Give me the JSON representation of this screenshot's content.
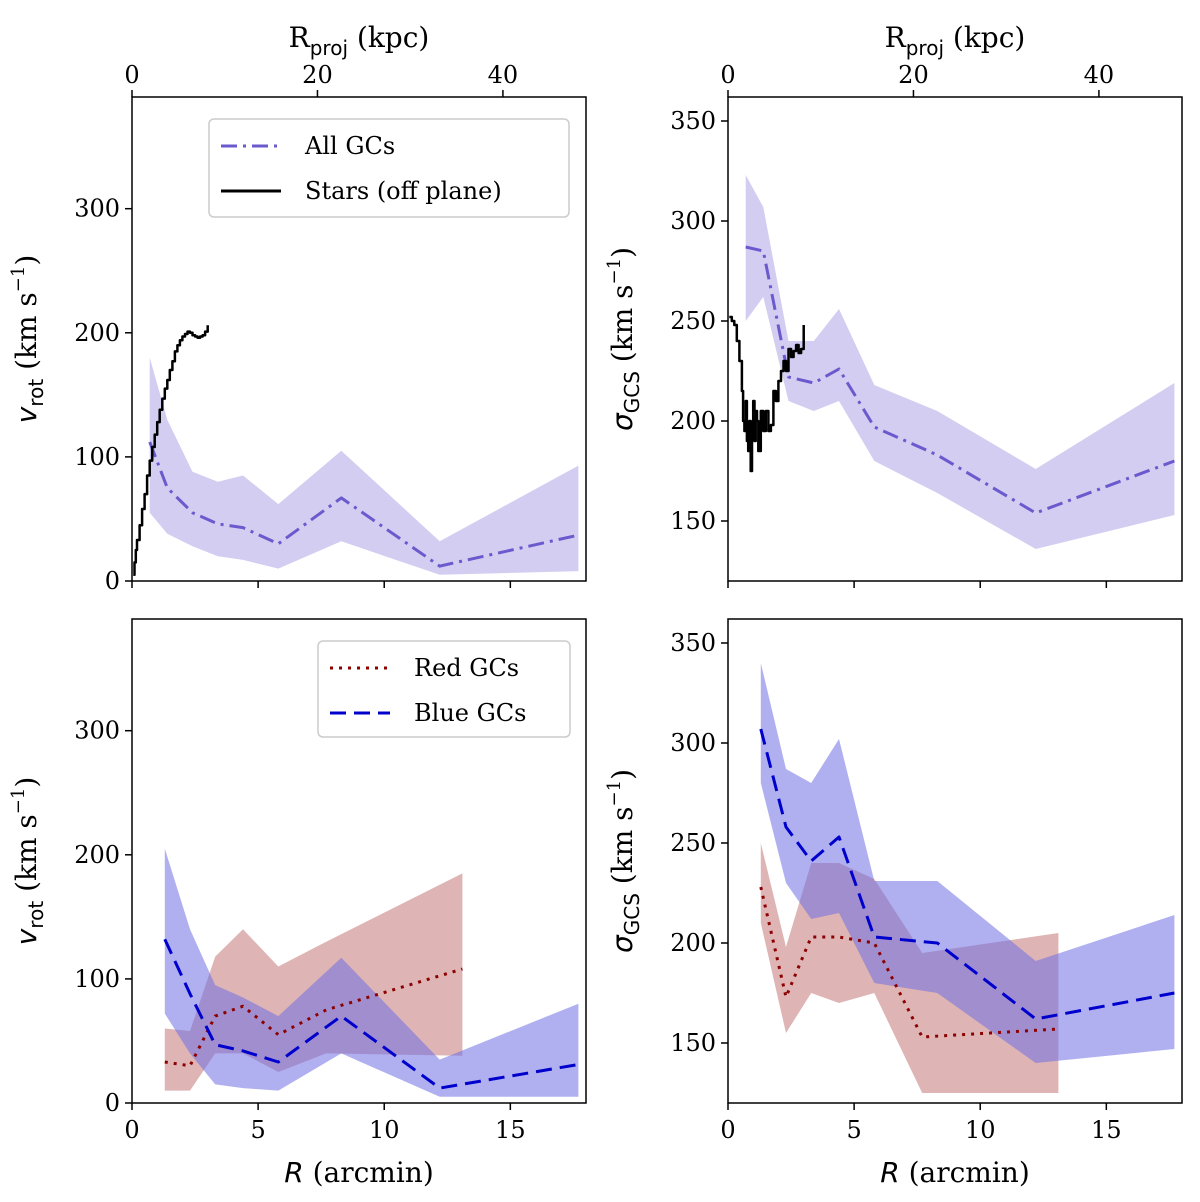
{
  "colors": {
    "all_gcs": "#6a5acd",
    "all_gcs_band": "#d3cdf1",
    "stars": "#000000",
    "red_gcs": "#8b0000",
    "red_gcs_band": "#cd8c8c",
    "blue_gcs": "#0000cd",
    "blue_gcs_band": "#6f6fe6"
  },
  "chart_data": [
    {
      "id": "top-left",
      "type": "line",
      "ylabel_symbol": "v",
      "ylabel_sub": "rot",
      "ylabel_units": "(km s",
      "ylabel_exp": "−1",
      "ylabel_close": ")",
      "top_axis": {
        "label_main": "R",
        "label_sub": "proj",
        "label_units": "(kpc)",
        "ticks": [
          0,
          20,
          40
        ],
        "kpc_per_arcmin": 2.72
      },
      "xlim": [
        0,
        18
      ],
      "ylim": [
        0,
        390
      ],
      "yticks": [
        0,
        100,
        200,
        300
      ],
      "xticks": [
        0,
        5,
        10,
        15
      ],
      "show_xticklabels": false,
      "legend": {
        "position": "upper-center",
        "entries": [
          {
            "label": "All GCs",
            "style": "dashdot",
            "color_key": "all_gcs"
          },
          {
            "label": "Stars (off plane)",
            "style": "solid",
            "color_key": "stars"
          }
        ]
      },
      "series": [
        {
          "name": "All GCs",
          "style": "dashdot",
          "color_key": "all_gcs",
          "band_color_key": "all_gcs_band",
          "band_opacity": 1,
          "x": [
            0.7,
            1.4,
            2.4,
            3.4,
            4.4,
            5.8,
            8.3,
            12.2,
            17.7
          ],
          "y": [
            112,
            75,
            55,
            46,
            43,
            30,
            67,
            12,
            37
          ],
          "lower": [
            55,
            38,
            28,
            20,
            17,
            10,
            32,
            5,
            8
          ],
          "upper": [
            180,
            130,
            88,
            80,
            85,
            62,
            105,
            32,
            93
          ]
        },
        {
          "name": "Stars (off plane)",
          "style": "solid",
          "color_key": "stars",
          "step": true,
          "x": [
            0.05,
            0.1,
            0.15,
            0.2,
            0.3,
            0.4,
            0.5,
            0.6,
            0.7,
            0.8,
            0.9,
            1.0,
            1.1,
            1.2,
            1.3,
            1.4,
            1.5,
            1.6,
            1.7,
            1.8,
            1.9,
            2.0,
            2.1,
            2.2,
            2.3,
            2.4,
            2.5,
            2.6,
            2.7,
            2.8,
            2.9,
            3.0
          ],
          "y": [
            5,
            15,
            25,
            33,
            45,
            58,
            70,
            85,
            97,
            108,
            118,
            128,
            138,
            147,
            155,
            162,
            170,
            177,
            185,
            190,
            194,
            197,
            199,
            201,
            200,
            198,
            197,
            196,
            197,
            198,
            201,
            206
          ]
        }
      ]
    },
    {
      "id": "top-right",
      "type": "line",
      "ylabel_symbol": "σ",
      "ylabel_sub": "GCS",
      "ylabel_units": "(km s",
      "ylabel_exp": "−1",
      "ylabel_close": ")",
      "top_axis": {
        "label_main": "R",
        "label_sub": "proj",
        "label_units": "(kpc)",
        "ticks": [
          0,
          20,
          40
        ],
        "kpc_per_arcmin": 2.72
      },
      "xlim": [
        0,
        18
      ],
      "ylim": [
        120,
        362
      ],
      "yticks": [
        150,
        200,
        250,
        300,
        350
      ],
      "xticks": [
        0,
        5,
        10,
        15
      ],
      "show_xticklabels": false,
      "series": [
        {
          "name": "All GCs",
          "style": "dashdot",
          "color_key": "all_gcs",
          "band_color_key": "all_gcs_band",
          "band_opacity": 1,
          "x": [
            0.7,
            1.4,
            2.4,
            3.4,
            4.4,
            5.8,
            8.3,
            12.2,
            17.7
          ],
          "y": [
            287,
            285,
            222,
            219,
            226,
            197,
            183,
            154,
            180
          ],
          "lower": [
            250,
            262,
            210,
            205,
            210,
            180,
            164,
            136,
            153
          ],
          "upper": [
            323,
            307,
            240,
            240,
            256,
            218,
            205,
            176,
            219
          ]
        },
        {
          "name": "Stars (off plane)",
          "style": "solid",
          "color_key": "stars",
          "step": true,
          "x": [
            0.05,
            0.15,
            0.25,
            0.35,
            0.45,
            0.55,
            0.6,
            0.65,
            0.7,
            0.75,
            0.8,
            0.85,
            0.9,
            0.95,
            1.0,
            1.05,
            1.1,
            1.15,
            1.2,
            1.3,
            1.4,
            1.5,
            1.6,
            1.7,
            1.8,
            1.9,
            2.0,
            2.1,
            2.2,
            2.3,
            2.4,
            2.5,
            2.6,
            2.7,
            2.8,
            2.9,
            3.0
          ],
          "y": [
            252,
            250,
            248,
            240,
            230,
            215,
            200,
            195,
            210,
            190,
            185,
            200,
            175,
            195,
            210,
            190,
            205,
            200,
            185,
            205,
            195,
            205,
            195,
            198,
            215,
            210,
            220,
            225,
            230,
            225,
            236,
            232,
            235,
            238,
            234,
            236,
            248
          ]
        }
      ]
    },
    {
      "id": "bottom-left",
      "type": "line",
      "ylabel_symbol": "v",
      "ylabel_sub": "rot",
      "ylabel_units": "(km s",
      "ylabel_exp": "−1",
      "ylabel_close": ")",
      "xlabel_symbol": "R",
      "xlabel_units": "(arcmin)",
      "xlim": [
        0,
        18
      ],
      "ylim": [
        0,
        390
      ],
      "yticks": [
        0,
        100,
        200,
        300
      ],
      "xticks": [
        0,
        5,
        10,
        15
      ],
      "show_xticklabels": true,
      "legend": {
        "position": "upper-right",
        "entries": [
          {
            "label": "Red GCs",
            "style": "dotted",
            "color_key": "red_gcs"
          },
          {
            "label": "Blue GCs",
            "style": "dashed",
            "color_key": "blue_gcs"
          }
        ]
      },
      "series": [
        {
          "name": "Red GCs",
          "style": "dotted",
          "color_key": "red_gcs",
          "band_color_key": "red_gcs_band",
          "band_opacity": 0.65,
          "x": [
            1.3,
            2.3,
            3.3,
            4.4,
            5.8,
            7.7,
            13.1
          ],
          "y": [
            33,
            30,
            70,
            78,
            55,
            75,
            108
          ],
          "lower": [
            10,
            10,
            40,
            40,
            25,
            40,
            38
          ],
          "upper": [
            60,
            58,
            118,
            140,
            110,
            130,
            185
          ]
        },
        {
          "name": "Blue GCs",
          "style": "dashed",
          "color_key": "blue_gcs",
          "band_color_key": "blue_gcs_band",
          "band_opacity": 0.55,
          "x": [
            1.3,
            2.3,
            3.3,
            4.4,
            5.8,
            8.3,
            12.2,
            17.7
          ],
          "y": [
            132,
            88,
            47,
            42,
            33,
            70,
            12,
            31
          ],
          "lower": [
            72,
            40,
            15,
            12,
            10,
            40,
            5,
            5
          ],
          "upper": [
            205,
            140,
            95,
            85,
            70,
            117,
            35,
            80
          ]
        }
      ]
    },
    {
      "id": "bottom-right",
      "type": "line",
      "ylabel_symbol": "σ",
      "ylabel_sub": "GCS",
      "ylabel_units": "(km s",
      "ylabel_exp": "−1",
      "ylabel_close": ")",
      "xlabel_symbol": "R",
      "xlabel_units": "(arcmin)",
      "xlim": [
        0,
        18
      ],
      "ylim": [
        120,
        362
      ],
      "yticks": [
        150,
        200,
        250,
        300,
        350
      ],
      "xticks": [
        0,
        5,
        10,
        15
      ],
      "show_xticklabels": true,
      "series": [
        {
          "name": "Red GCs",
          "style": "dotted",
          "color_key": "red_gcs",
          "band_color_key": "red_gcs_band",
          "band_opacity": 0.65,
          "x": [
            1.3,
            2.3,
            3.3,
            4.4,
            5.8,
            7.7,
            13.1
          ],
          "y": [
            228,
            173,
            203,
            203,
            200,
            153,
            157
          ],
          "lower": [
            210,
            155,
            175,
            170,
            175,
            125,
            125
          ],
          "upper": [
            250,
            198,
            240,
            240,
            232,
            195,
            205
          ]
        },
        {
          "name": "Blue GCs",
          "style": "dashed",
          "color_key": "blue_gcs",
          "band_color_key": "blue_gcs_band",
          "band_opacity": 0.55,
          "x": [
            1.3,
            2.3,
            3.3,
            4.4,
            5.8,
            8.3,
            12.2,
            17.7
          ],
          "y": [
            307,
            258,
            241,
            253,
            203,
            200,
            162,
            175
          ],
          "lower": [
            280,
            230,
            212,
            215,
            180,
            175,
            140,
            147
          ],
          "upper": [
            340,
            287,
            280,
            302,
            231,
            231,
            191,
            214
          ]
        }
      ]
    }
  ]
}
